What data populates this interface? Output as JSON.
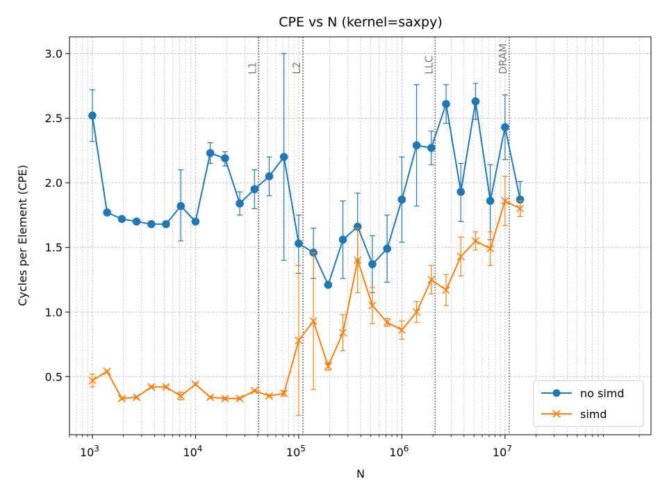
{
  "chart_data": {
    "type": "line",
    "title": "CPE vs N (kernel=saxpy)",
    "xlabel": "N",
    "ylabel": "Cycles per Element (CPE)",
    "xscale": "log",
    "xlim": [
      600,
      260000000
    ],
    "ylim": [
      0.05,
      3.13
    ],
    "grid": true,
    "legend_position": "lower-right",
    "x_ticks": [
      {
        "value": 1000,
        "base": "10",
        "exp": "3"
      },
      {
        "value": 10000,
        "base": "10",
        "exp": "4"
      },
      {
        "value": 100000,
        "base": "10",
        "exp": "5"
      },
      {
        "value": 1000000,
        "base": "10",
        "exp": "6"
      },
      {
        "value": 10000000,
        "base": "10",
        "exp": "7"
      }
    ],
    "y_ticks": [
      {
        "value": 0.5,
        "label": "0.5"
      },
      {
        "value": 1.0,
        "label": "1.0"
      },
      {
        "value": 1.5,
        "label": "1.5"
      },
      {
        "value": 2.0,
        "label": "2.0"
      },
      {
        "value": 2.5,
        "label": "2.5"
      },
      {
        "value": 3.0,
        "label": "3.0"
      }
    ],
    "cache_lines": [
      {
        "label": "L1",
        "x": 40960
      },
      {
        "label": "L2",
        "x": 110000
      },
      {
        "label": "LLC",
        "x": 2100000
      },
      {
        "label": "DRAM",
        "x": 11000000
      }
    ],
    "x": [
      1000,
      1389,
      1931,
      2683,
      3728,
      5179,
      7197,
      10000,
      13895,
      19307,
      26827,
      37276,
      51795,
      71969,
      100000,
      138950,
      193070,
      268270,
      372760,
      517950,
      719690,
      1000000,
      1389500,
      1930700,
      2682700,
      3727600,
      5179500,
      7196900,
      10000000,
      14000000
    ],
    "series": [
      {
        "name": "no simd",
        "color": "#1f77b4",
        "marker": "circle",
        "values": [
          2.52,
          1.77,
          1.72,
          1.7,
          1.68,
          1.68,
          1.82,
          1.7,
          2.23,
          2.19,
          1.84,
          1.95,
          2.05,
          2.2,
          1.53,
          1.46,
          1.21,
          1.56,
          1.66,
          1.37,
          1.49,
          1.87,
          2.29,
          2.27,
          2.61,
          1.93,
          2.63,
          1.86,
          2.43,
          1.87
        ],
        "err_low": [
          0.2,
          0.01,
          0.01,
          0.01,
          0.01,
          0.01,
          0.27,
          0.01,
          0.08,
          0.06,
          0.09,
          0.15,
          0.15,
          0.8,
          0.23,
          0.2,
          0.01,
          0.3,
          0.26,
          0.22,
          0.26,
          0.33,
          0.47,
          0.13,
          0.15,
          0.23,
          0.14,
          0.3,
          0.25,
          0.13
        ],
        "err_high": [
          0.2,
          0.01,
          0.01,
          0.01,
          0.01,
          0.01,
          0.28,
          0.01,
          0.08,
          0.05,
          0.09,
          0.15,
          0.15,
          0.8,
          0.22,
          0.19,
          0.01,
          0.3,
          0.26,
          0.22,
          0.26,
          0.33,
          0.47,
          0.13,
          0.15,
          0.22,
          0.14,
          0.28,
          0.25,
          0.14
        ]
      },
      {
        "name": "simd",
        "color": "#ff7f0e",
        "marker": "x",
        "values": [
          0.47,
          0.54,
          0.33,
          0.34,
          0.42,
          0.42,
          0.35,
          0.44,
          0.34,
          0.33,
          0.33,
          0.39,
          0.35,
          0.37,
          0.78,
          0.93,
          0.58,
          0.84,
          1.4,
          1.05,
          0.92,
          0.86,
          1.0,
          1.25,
          1.17,
          1.43,
          1.55,
          1.49,
          1.86,
          1.8
        ],
        "err_low": [
          0.05,
          0.01,
          0.01,
          0.01,
          0.01,
          0.01,
          0.03,
          0.01,
          0.01,
          0.01,
          0.01,
          0.01,
          0.01,
          0.02,
          0.58,
          0.53,
          0.03,
          0.14,
          0.25,
          0.14,
          0.03,
          0.07,
          0.08,
          0.11,
          0.12,
          0.15,
          0.07,
          0.13,
          0.19,
          0.06
        ],
        "err_high": [
          0.05,
          0.01,
          0.01,
          0.01,
          0.01,
          0.01,
          0.03,
          0.01,
          0.01,
          0.01,
          0.01,
          0.01,
          0.01,
          0.02,
          0.58,
          0.53,
          0.03,
          0.14,
          0.25,
          0.14,
          0.03,
          0.07,
          0.08,
          0.11,
          0.12,
          0.15,
          0.07,
          0.13,
          0.19,
          0.06
        ]
      }
    ]
  }
}
